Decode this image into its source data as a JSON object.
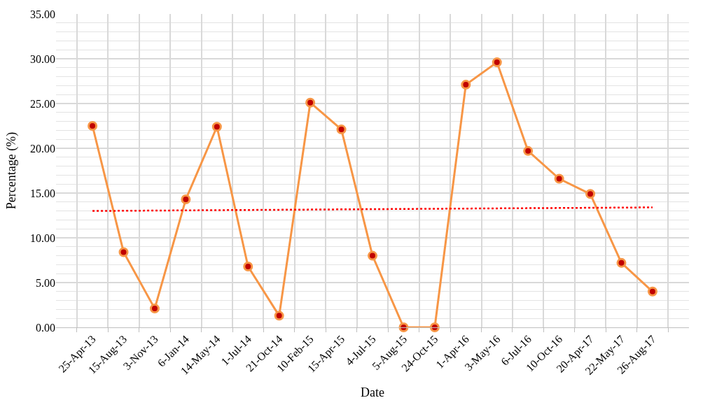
{
  "chart_data": {
    "type": "line",
    "xlabel": "Date",
    "ylabel": "Percentage (%)",
    "categories": [
      "25-Apr-13",
      "15-Aug-13",
      "3-Nov-13",
      "6-Jan-14",
      "14-May-14",
      "1-Jul-14",
      "21-Oct-14",
      "10-Feb-15",
      "15-Apr-15",
      "4-Jul-15",
      "5-Aug-15",
      "24-Oct-15",
      "1-Apr-16",
      "3-May-16",
      "6-Jul-16",
      "10-Oct-16",
      "20-Apr-17",
      "22-May-17",
      "26-Aug-17"
    ],
    "series": [
      {
        "color": "#f79646",
        "marker": "circle",
        "line_style": "solid",
        "values": [
          22.5,
          8.4,
          2.1,
          14.3,
          22.4,
          6.8,
          1.3,
          25.1,
          22.1,
          8.0,
          0,
          0,
          27.1,
          29.6,
          19.7,
          16.6,
          14.9,
          7.2,
          4.0
        ]
      },
      {
        "type": "line",
        "color": "#ff0000",
        "marker": "none",
        "line_style": "dotted",
        "x": [
          "25-Apr-13",
          "26-Aug-17"
        ],
        "values": [
          13.0,
          13.4
        ]
      }
    ],
    "ylim": [
      0,
      35
    ],
    "yticks": [
      {
        "value": 0,
        "label": "0.00"
      },
      {
        "value": 5,
        "label": "5.00"
      },
      {
        "value": 10,
        "label": "10.00"
      },
      {
        "value": 15,
        "label": "15.00"
      },
      {
        "value": 20,
        "label": "20.00"
      },
      {
        "value": 25,
        "label": "25.00"
      },
      {
        "value": 30,
        "label": "30.00"
      },
      {
        "value": 35,
        "label": "35.00"
      }
    ],
    "grid": true
  }
}
